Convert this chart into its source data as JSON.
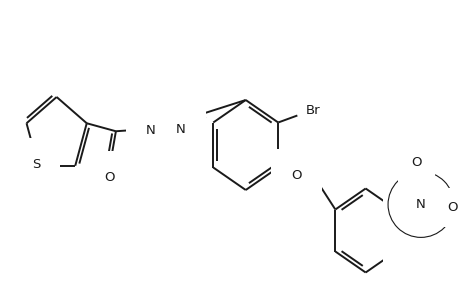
{
  "background_color": "#ffffff",
  "line_color": "#1a1a1a",
  "line_width": 1.4,
  "font_size": 9.5,
  "fig_width": 4.6,
  "fig_height": 3.0,
  "dpi": 100,
  "xlim": [
    0,
    460
  ],
  "ylim": [
    0,
    300
  ]
}
